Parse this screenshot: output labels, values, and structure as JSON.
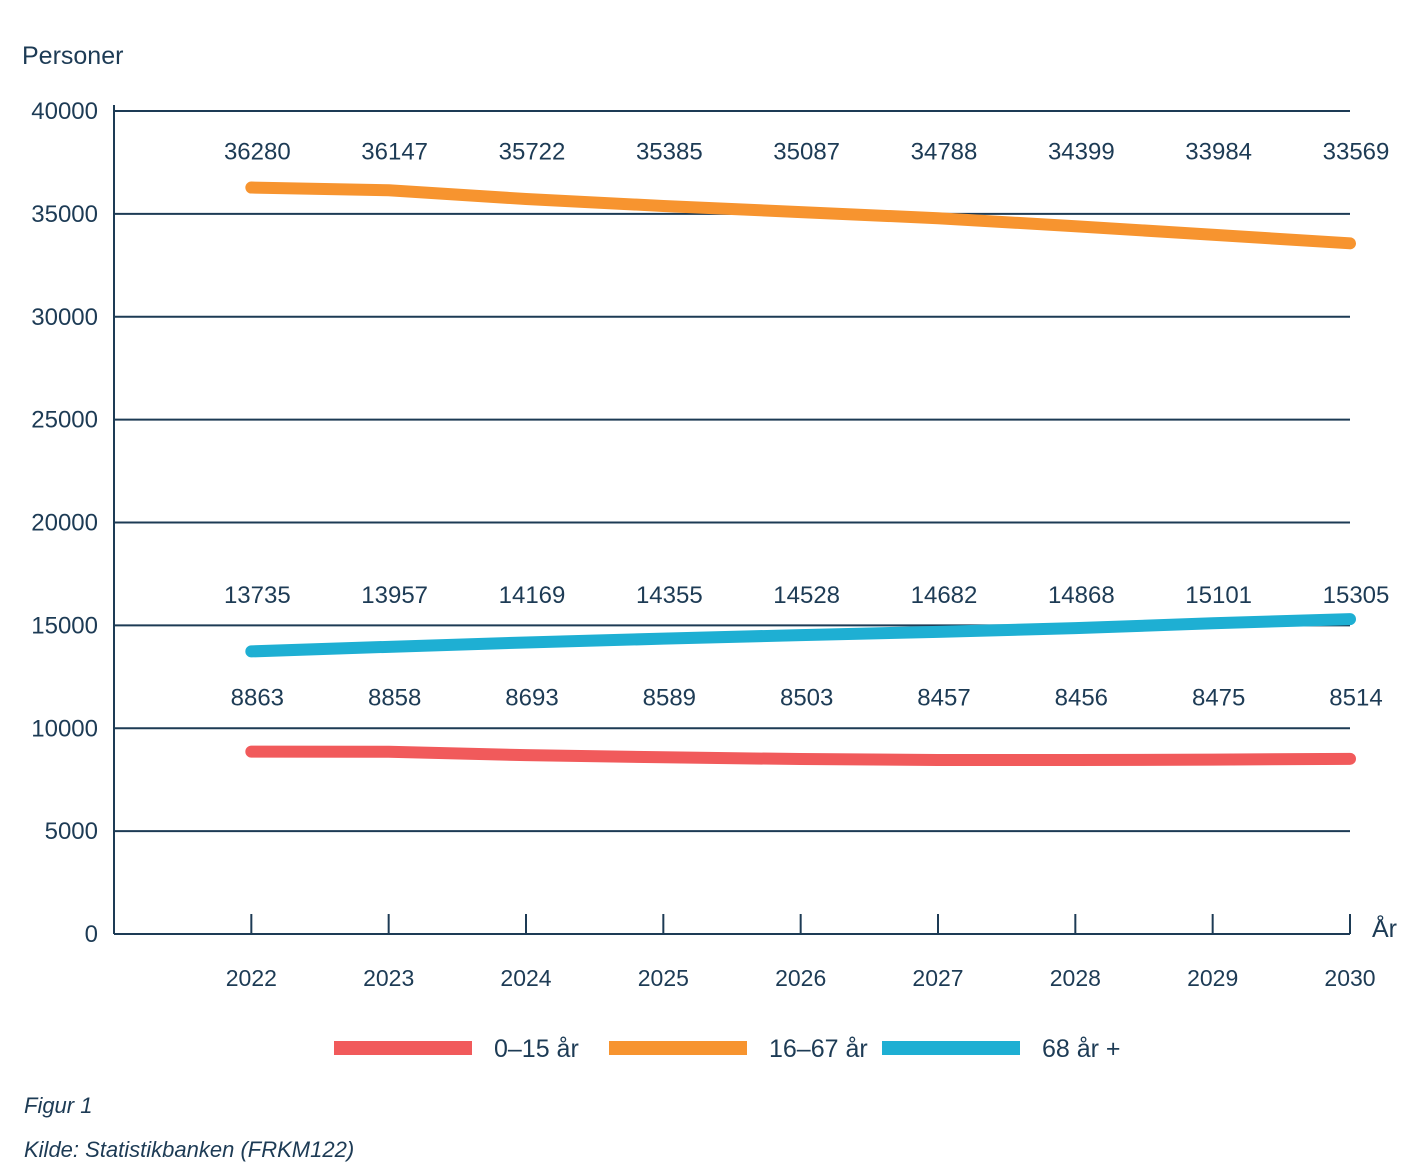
{
  "chart_data": {
    "type": "line",
    "title": "",
    "xlabel": "År",
    "ylabel": "Personer",
    "x": [
      2022,
      2023,
      2024,
      2025,
      2026,
      2027,
      2028,
      2029,
      2030
    ],
    "x_tick_labels": [
      "2022",
      "2023",
      "2024",
      "2025",
      "2026",
      "2027",
      "2028",
      "2029",
      "2030"
    ],
    "ylim": [
      0,
      40000
    ],
    "y_ticks": [
      0,
      5000,
      10000,
      15000,
      20000,
      25000,
      30000,
      35000,
      40000
    ],
    "y_tick_labels": [
      "0",
      "5000",
      "10000",
      "15000",
      "20000",
      "25000",
      "30000",
      "35000",
      "40000"
    ],
    "grid": true,
    "legend_position": "bottom",
    "data_labels": true,
    "series": [
      {
        "name": "0–15 år",
        "color": "#f15a5b",
        "values": [
          8863,
          8858,
          8693,
          8589,
          8503,
          8457,
          8456,
          8475,
          8514
        ]
      },
      {
        "name": "16–67 år",
        "color": "#f7942f",
        "values": [
          36280,
          36147,
          35722,
          35385,
          35087,
          34788,
          34399,
          33984,
          33569
        ]
      },
      {
        "name": "68 år +",
        "color": "#1eafd3",
        "values": [
          13735,
          13957,
          14169,
          14355,
          14528,
          14682,
          14868,
          15101,
          15305
        ]
      }
    ]
  },
  "caption": {
    "figure": "Figur 1",
    "source": "Kilde: Statistikbanken (FRKM122)"
  },
  "colors": {
    "axis": "#1d3b55",
    "text": "#1d3b55"
  }
}
